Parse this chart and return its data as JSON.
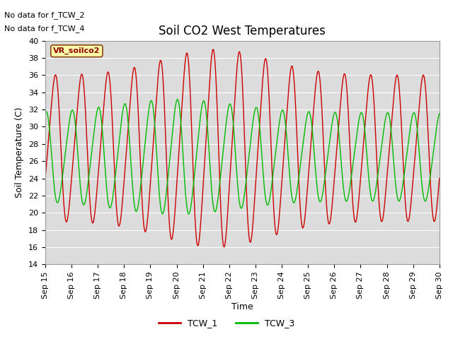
{
  "title": "Soil CO2 West Temperatures",
  "xlabel": "Time",
  "ylabel": "Soil Temperature (C)",
  "ylim": [
    14,
    40
  ],
  "xlim": [
    0,
    15
  ],
  "bg_color": "#dcdcdc",
  "no_data_texts": [
    "No data for f_TCW_2",
    "No data for f_TCW_4"
  ],
  "vr_label": "VR_soilco2",
  "xtick_labels": [
    "Sep 15",
    "Sep 16",
    "Sep 17",
    "Sep 18",
    "Sep 19",
    "Sep 20",
    "Sep 21",
    "Sep 22",
    "Sep 23",
    "Sep 24",
    "Sep 25",
    "Sep 26",
    "Sep 27",
    "Sep 28",
    "Sep 29",
    "Sep 30"
  ],
  "ytick_values": [
    14,
    16,
    18,
    20,
    22,
    24,
    26,
    28,
    30,
    32,
    34,
    36,
    38,
    40
  ],
  "tcw1_color": "#cc0000",
  "tcw3_color": "#00bb00",
  "legend_labels": [
    "TCW_1",
    "TCW_3"
  ],
  "title_fontsize": 12,
  "axis_label_fontsize": 9,
  "tick_fontsize": 8
}
